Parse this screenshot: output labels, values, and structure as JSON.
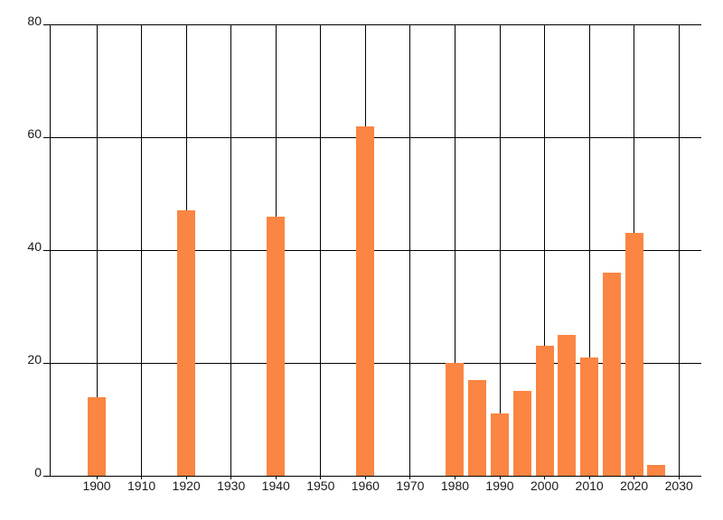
{
  "chart_data": {
    "type": "bar",
    "title": "",
    "xlabel": "",
    "ylabel": "",
    "x": [
      1900,
      1920,
      1940,
      1960,
      1980,
      1985,
      1990,
      1995,
      2000,
      2005,
      2010,
      2015,
      2020,
      2025
    ],
    "values": [
      14,
      47,
      46,
      62,
      20,
      17,
      11,
      15,
      23,
      25,
      21,
      36,
      43,
      2
    ],
    "xticks": [
      1900,
      1910,
      1920,
      1930,
      1940,
      1950,
      1960,
      1970,
      1980,
      1990,
      2000,
      2010,
      2020,
      2030
    ],
    "yticks": [
      0,
      20,
      40,
      60,
      80
    ],
    "xtick_labels": [
      "1900",
      "1910",
      "1920",
      "1930",
      "1940",
      "1950",
      "1960",
      "1970",
      "1980",
      "1990",
      "2000",
      "2010",
      "2020",
      "2030"
    ],
    "ytick_labels": [
      "0",
      "20",
      "40",
      "60",
      "80"
    ],
    "xlim": [
      1889.5,
      2035
    ],
    "ylim": [
      0,
      80
    ],
    "grid": true,
    "legend": false,
    "bar_color": "#fb8542",
    "grid_color": "#000000",
    "axis_color": "#000000",
    "label_color": "#1a1a1a",
    "background_color": "#ffffff"
  }
}
